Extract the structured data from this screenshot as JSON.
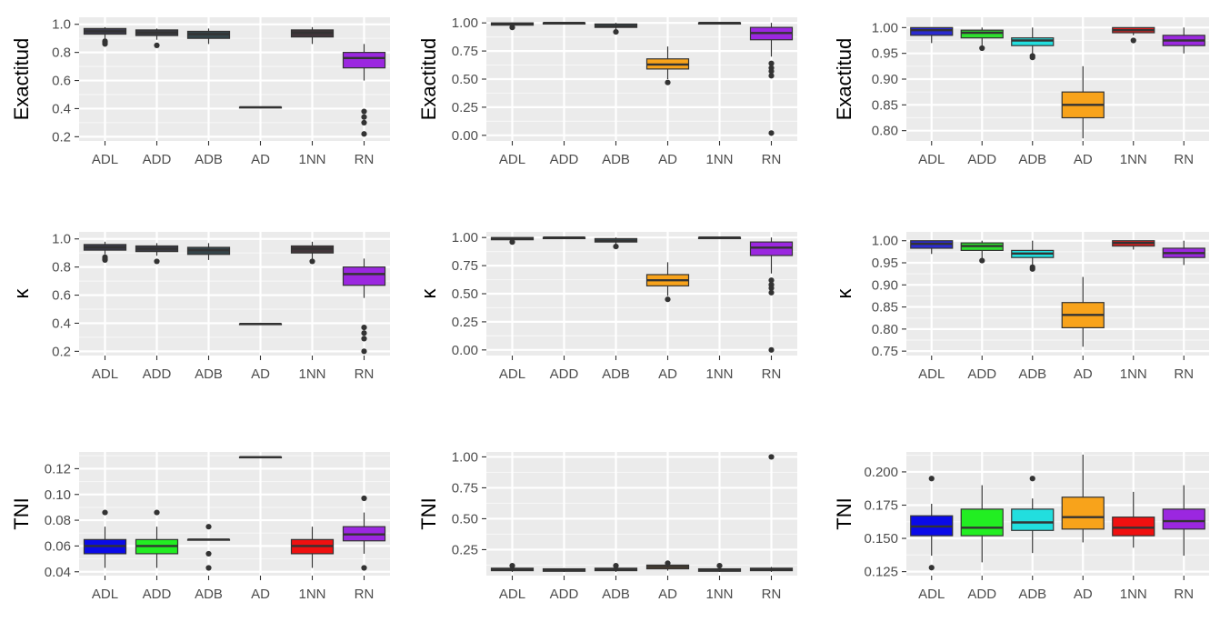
{
  "categories": [
    "ADL",
    "ADD",
    "ADB",
    "AD",
    "1NN",
    "RN"
  ],
  "chart_data": [
    {
      "type": "box",
      "ylabel": "Exactitud",
      "ylim": [
        0.17,
        1.05
      ],
      "yticks": [
        0.2,
        0.4,
        0.6,
        0.8,
        1.0
      ],
      "ytick_labels": [
        "0.2",
        "0.4",
        "0.6",
        "0.8",
        "1.0"
      ],
      "boxes": [
        {
          "category": "ADL",
          "min": 0.9,
          "q1": 0.93,
          "median": 0.95,
          "q3": 0.97,
          "max": 0.98,
          "fill": "#3b3a4a",
          "outliers": [
            0.88,
            0.87,
            0.86
          ]
        },
        {
          "category": "ADD",
          "min": 0.89,
          "q1": 0.92,
          "median": 0.94,
          "q3": 0.96,
          "max": 0.97,
          "fill": "#3a3a42",
          "outliers": [
            0.85
          ]
        },
        {
          "category": "ADB",
          "min": 0.86,
          "q1": 0.9,
          "median": 0.93,
          "q3": 0.95,
          "max": 0.97,
          "fill": "#34454a",
          "outliers": []
        },
        {
          "category": "AD",
          "min": 0.41,
          "q1": 0.41,
          "median": 0.41,
          "q3": 0.41,
          "max": 0.41,
          "fill": "#3a3a3a",
          "outliers": []
        },
        {
          "category": "1NN",
          "min": 0.86,
          "q1": 0.91,
          "median": 0.94,
          "q3": 0.96,
          "max": 0.98,
          "fill": "#42353a",
          "outliers": []
        },
        {
          "category": "RN",
          "min": 0.6,
          "q1": 0.69,
          "median": 0.76,
          "q3": 0.8,
          "max": 0.86,
          "fill": "#9b27e0",
          "outliers": [
            0.38,
            0.34,
            0.3,
            0.22
          ]
        }
      ]
    },
    {
      "type": "box",
      "ylabel": "Exactitud",
      "ylim": [
        -0.05,
        1.05
      ],
      "yticks": [
        0.0,
        0.25,
        0.5,
        0.75,
        1.0
      ],
      "ytick_labels": [
        "0.00",
        "0.25",
        "0.50",
        "0.75",
        "1.00"
      ],
      "boxes": [
        {
          "category": "ADL",
          "min": 0.97,
          "q1": 0.98,
          "median": 0.99,
          "q3": 1.0,
          "max": 1.0,
          "fill": "#3b3a4a",
          "outliers": [
            0.96
          ]
        },
        {
          "category": "ADD",
          "min": 0.99,
          "q1": 0.99,
          "median": 1.0,
          "q3": 1.0,
          "max": 1.0,
          "fill": "#3a3a42",
          "outliers": []
        },
        {
          "category": "ADB",
          "min": 0.94,
          "q1": 0.96,
          "median": 0.97,
          "q3": 0.99,
          "max": 1.0,
          "fill": "#34454a",
          "outliers": [
            0.92
          ]
        },
        {
          "category": "AD",
          "min": 0.5,
          "q1": 0.59,
          "median": 0.63,
          "q3": 0.68,
          "max": 0.79,
          "fill": "#f8a31b",
          "outliers": [
            0.47
          ]
        },
        {
          "category": "1NN",
          "min": 0.99,
          "q1": 0.99,
          "median": 1.0,
          "q3": 1.0,
          "max": 1.0,
          "fill": "#42353a",
          "outliers": []
        },
        {
          "category": "RN",
          "min": 0.7,
          "q1": 0.85,
          "median": 0.91,
          "q3": 0.96,
          "max": 1.0,
          "fill": "#9b27e0",
          "outliers": [
            0.64,
            0.6,
            0.57,
            0.53,
            0.02
          ]
        }
      ]
    },
    {
      "type": "box",
      "ylabel": "Exactitud",
      "ylim": [
        0.78,
        1.02
      ],
      "yticks": [
        0.8,
        0.85,
        0.9,
        0.95,
        1.0
      ],
      "ytick_labels": [
        "0.80",
        "0.85",
        "0.90",
        "0.95",
        "1.00"
      ],
      "boxes": [
        {
          "category": "ADL",
          "min": 0.97,
          "q1": 0.985,
          "median": 0.995,
          "q3": 1.0,
          "max": 1.0,
          "fill": "#2a2ad0",
          "outliers": []
        },
        {
          "category": "ADD",
          "min": 0.965,
          "q1": 0.98,
          "median": 0.99,
          "q3": 0.995,
          "max": 1.0,
          "fill": "#2ee02e",
          "outliers": [
            0.96
          ]
        },
        {
          "category": "ADB",
          "min": 0.95,
          "q1": 0.965,
          "median": 0.975,
          "q3": 0.98,
          "max": 1.0,
          "fill": "#22dede",
          "outliers": [
            0.945,
            0.942
          ]
        },
        {
          "category": "AD",
          "min": 0.785,
          "q1": 0.825,
          "median": 0.85,
          "q3": 0.875,
          "max": 0.925,
          "fill": "#f8a31b",
          "outliers": []
        },
        {
          "category": "1NN",
          "min": 0.985,
          "q1": 0.99,
          "median": 0.995,
          "q3": 1.0,
          "max": 1.0,
          "fill": "#e02020",
          "outliers": [
            0.975
          ]
        },
        {
          "category": "RN",
          "min": 0.95,
          "q1": 0.965,
          "median": 0.975,
          "q3": 0.985,
          "max": 1.0,
          "fill": "#9b27e0",
          "outliers": []
        }
      ]
    },
    {
      "type": "box",
      "ylabel": "κ",
      "ylim": [
        0.17,
        1.05
      ],
      "yticks": [
        0.2,
        0.4,
        0.6,
        0.8,
        1.0
      ],
      "ytick_labels": [
        "0.2",
        "0.4",
        "0.6",
        "0.8",
        "1.0"
      ],
      "boxes": [
        {
          "category": "ADL",
          "min": 0.89,
          "q1": 0.92,
          "median": 0.94,
          "q3": 0.96,
          "max": 0.98,
          "fill": "#3b3a4a",
          "outliers": [
            0.87,
            0.86,
            0.85
          ]
        },
        {
          "category": "ADD",
          "min": 0.88,
          "q1": 0.91,
          "median": 0.93,
          "q3": 0.95,
          "max": 0.97,
          "fill": "#3a3a42",
          "outliers": [
            0.84
          ]
        },
        {
          "category": "ADB",
          "min": 0.85,
          "q1": 0.89,
          "median": 0.92,
          "q3": 0.94,
          "max": 0.97,
          "fill": "#34454a",
          "outliers": []
        },
        {
          "category": "AD",
          "min": 0.395,
          "q1": 0.395,
          "median": 0.395,
          "q3": 0.395,
          "max": 0.395,
          "fill": "#3a3a3a",
          "outliers": []
        },
        {
          "category": "1NN",
          "min": 0.85,
          "q1": 0.9,
          "median": 0.93,
          "q3": 0.95,
          "max": 0.98,
          "fill": "#42353a",
          "outliers": [
            0.84
          ]
        },
        {
          "category": "RN",
          "min": 0.58,
          "q1": 0.67,
          "median": 0.75,
          "q3": 0.8,
          "max": 0.86,
          "fill": "#9b27e0",
          "outliers": [
            0.37,
            0.33,
            0.29,
            0.2
          ]
        }
      ]
    },
    {
      "type": "box",
      "ylabel": "κ",
      "ylim": [
        -0.05,
        1.05
      ],
      "yticks": [
        0.0,
        0.25,
        0.5,
        0.75,
        1.0
      ],
      "ytick_labels": [
        "0.00",
        "0.25",
        "0.50",
        "0.75",
        "1.00"
      ],
      "boxes": [
        {
          "category": "ADL",
          "min": 0.97,
          "q1": 0.98,
          "median": 0.99,
          "q3": 1.0,
          "max": 1.0,
          "fill": "#3b3a4a",
          "outliers": [
            0.96
          ]
        },
        {
          "category": "ADD",
          "min": 0.99,
          "q1": 0.99,
          "median": 1.0,
          "q3": 1.0,
          "max": 1.0,
          "fill": "#3a3a42",
          "outliers": []
        },
        {
          "category": "ADB",
          "min": 0.94,
          "q1": 0.96,
          "median": 0.97,
          "q3": 0.99,
          "max": 1.0,
          "fill": "#34454a",
          "outliers": [
            0.92
          ]
        },
        {
          "category": "AD",
          "min": 0.48,
          "q1": 0.57,
          "median": 0.62,
          "q3": 0.67,
          "max": 0.78,
          "fill": "#f8a31b",
          "outliers": [
            0.45
          ]
        },
        {
          "category": "1NN",
          "min": 0.99,
          "q1": 0.99,
          "median": 1.0,
          "q3": 1.0,
          "max": 1.0,
          "fill": "#42353a",
          "outliers": []
        },
        {
          "category": "RN",
          "min": 0.68,
          "q1": 0.84,
          "median": 0.91,
          "q3": 0.96,
          "max": 1.0,
          "fill": "#9b27e0",
          "outliers": [
            0.62,
            0.58,
            0.55,
            0.51,
            0.0
          ]
        }
      ]
    },
    {
      "type": "box",
      "ylabel": "κ",
      "ylim": [
        0.74,
        1.02
      ],
      "yticks": [
        0.75,
        0.8,
        0.85,
        0.9,
        0.95,
        1.0
      ],
      "ytick_labels": [
        "0.75",
        "0.80",
        "0.85",
        "0.90",
        "0.95",
        "1.00"
      ],
      "boxes": [
        {
          "category": "ADL",
          "min": 0.97,
          "q1": 0.983,
          "median": 0.993,
          "q3": 1.0,
          "max": 1.0,
          "fill": "#2a2ad0",
          "outliers": []
        },
        {
          "category": "ADD",
          "min": 0.96,
          "q1": 0.978,
          "median": 0.988,
          "q3": 0.995,
          "max": 1.0,
          "fill": "#2ee02e",
          "outliers": [
            0.955
          ]
        },
        {
          "category": "ADB",
          "min": 0.945,
          "q1": 0.962,
          "median": 0.971,
          "q3": 0.978,
          "max": 1.0,
          "fill": "#22dede",
          "outliers": [
            0.94,
            0.936
          ]
        },
        {
          "category": "AD",
          "min": 0.76,
          "q1": 0.803,
          "median": 0.832,
          "q3": 0.86,
          "max": 0.918,
          "fill": "#f8a31b",
          "outliers": []
        },
        {
          "category": "1NN",
          "min": 0.98,
          "q1": 0.988,
          "median": 0.995,
          "q3": 1.0,
          "max": 1.0,
          "fill": "#e02020",
          "outliers": []
        },
        {
          "category": "RN",
          "min": 0.945,
          "q1": 0.962,
          "median": 0.972,
          "q3": 0.983,
          "max": 1.0,
          "fill": "#9b27e0",
          "outliers": []
        }
      ]
    },
    {
      "type": "box",
      "ylabel": "TNI",
      "ylim": [
        0.037,
        0.133
      ],
      "yticks": [
        0.04,
        0.06,
        0.08,
        0.1,
        0.12
      ],
      "ytick_labels": [
        "0.04",
        "0.06",
        "0.08",
        "0.10",
        "0.12"
      ],
      "boxes": [
        {
          "category": "ADL",
          "min": 0.043,
          "q1": 0.054,
          "median": 0.06,
          "q3": 0.065,
          "max": 0.075,
          "fill": "#0a0ae8",
          "outliers": [
            0.086
          ]
        },
        {
          "category": "ADD",
          "min": 0.043,
          "q1": 0.054,
          "median": 0.06,
          "q3": 0.065,
          "max": 0.075,
          "fill": "#22ee22",
          "outliers": [
            0.086
          ]
        },
        {
          "category": "ADB",
          "min": 0.065,
          "q1": 0.065,
          "median": 0.065,
          "q3": 0.065,
          "max": 0.065,
          "fill": "#22dede",
          "outliers": [
            0.075,
            0.054,
            0.043
          ]
        },
        {
          "category": "AD",
          "min": 0.129,
          "q1": 0.129,
          "median": 0.129,
          "q3": 0.129,
          "max": 0.129,
          "fill": "#f8a31b",
          "outliers": []
        },
        {
          "category": "1NN",
          "min": 0.043,
          "q1": 0.054,
          "median": 0.06,
          "q3": 0.065,
          "max": 0.075,
          "fill": "#f01010",
          "outliers": []
        },
        {
          "category": "RN",
          "min": 0.054,
          "q1": 0.064,
          "median": 0.069,
          "q3": 0.075,
          "max": 0.086,
          "fill": "#9b27e0",
          "outliers": [
            0.097,
            0.043
          ]
        }
      ]
    },
    {
      "type": "box",
      "ylabel": "TNI",
      "ylim": [
        0.04,
        1.04
      ],
      "yticks": [
        0.25,
        0.5,
        0.75,
        1.0
      ],
      "ytick_labels": [
        "0.25",
        "0.50",
        "0.75",
        "1.00"
      ],
      "boxes": [
        {
          "category": "ADL",
          "min": 0.07,
          "q1": 0.08,
          "median": 0.09,
          "q3": 0.1,
          "max": 0.11,
          "fill": "#3a3a48",
          "outliers": [
            0.12
          ]
        },
        {
          "category": "ADD",
          "min": 0.07,
          "q1": 0.075,
          "median": 0.085,
          "q3": 0.095,
          "max": 0.1,
          "fill": "#3a3a42",
          "outliers": []
        },
        {
          "category": "ADB",
          "min": 0.07,
          "q1": 0.08,
          "median": 0.09,
          "q3": 0.1,
          "max": 0.11,
          "fill": "#34454a",
          "outliers": [
            0.12
          ]
        },
        {
          "category": "AD",
          "min": 0.08,
          "q1": 0.095,
          "median": 0.11,
          "q3": 0.125,
          "max": 0.13,
          "fill": "#8a5e2a",
          "outliers": [
            0.14
          ]
        },
        {
          "category": "1NN",
          "min": 0.07,
          "q1": 0.075,
          "median": 0.085,
          "q3": 0.095,
          "max": 0.1,
          "fill": "#42353a",
          "outliers": [
            0.12
          ]
        },
        {
          "category": "RN",
          "min": 0.07,
          "q1": 0.08,
          "median": 0.09,
          "q3": 0.1,
          "max": 0.11,
          "fill": "#5a2e7a",
          "outliers": [
            1.0
          ]
        }
      ]
    },
    {
      "type": "box",
      "ylabel": "TNI",
      "ylim": [
        0.122,
        0.215
      ],
      "yticks": [
        0.125,
        0.15,
        0.175,
        0.2
      ],
      "ytick_labels": [
        "0.125",
        "0.150",
        "0.175",
        "0.200"
      ],
      "boxes": [
        {
          "category": "ADL",
          "min": 0.137,
          "q1": 0.152,
          "median": 0.159,
          "q3": 0.167,
          "max": 0.176,
          "fill": "#0a0ae8",
          "outliers": [
            0.195,
            0.128
          ]
        },
        {
          "category": "ADD",
          "min": 0.132,
          "q1": 0.152,
          "median": 0.158,
          "q3": 0.172,
          "max": 0.19,
          "fill": "#22ee22",
          "outliers": []
        },
        {
          "category": "ADB",
          "min": 0.139,
          "q1": 0.156,
          "median": 0.162,
          "q3": 0.172,
          "max": 0.18,
          "fill": "#22dede",
          "outliers": [
            0.195
          ]
        },
        {
          "category": "AD",
          "min": 0.147,
          "q1": 0.157,
          "median": 0.166,
          "q3": 0.181,
          "max": 0.213,
          "fill": "#f8a31b",
          "outliers": []
        },
        {
          "category": "1NN",
          "min": 0.143,
          "q1": 0.152,
          "median": 0.158,
          "q3": 0.166,
          "max": 0.185,
          "fill": "#f01010",
          "outliers": []
        },
        {
          "category": "RN",
          "min": 0.137,
          "q1": 0.157,
          "median": 0.163,
          "q3": 0.172,
          "max": 0.19,
          "fill": "#9b27e0",
          "outliers": []
        }
      ]
    }
  ]
}
